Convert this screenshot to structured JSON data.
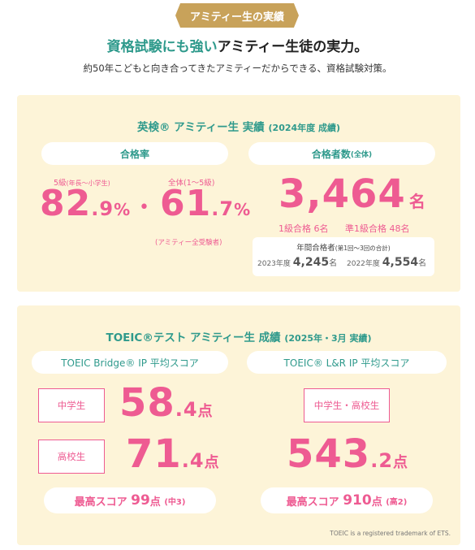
{
  "ribbon": "アミティー生の実績",
  "headline": {
    "teal": "資格試験にも強い",
    "rest": "アミティー生徒の実力。"
  },
  "subline": "約50年こどもと向き合ってきたアミティーだからできる、資格試験対策。",
  "eiken": {
    "title": "英検® アミティー生 実績",
    "title_note": "(2024年度 成績)",
    "pass_rate": {
      "label": "合格率",
      "kids_label": "5級",
      "kids_note": "(年長〜小学生)",
      "kids_int": "82",
      "kids_dec": ".9",
      "kids_unit": "%",
      "dot": "•",
      "all_label": "全体",
      "all_note": "(1〜5級)",
      "all_int": "61",
      "all_dec": ".7",
      "all_unit": "%",
      "all_sub": "(アミティー全受験者)"
    },
    "passers": {
      "label": "合格者数",
      "label_note": "(全体)",
      "count": "3,464",
      "unit": "名",
      "grade1": "1級合格 6名",
      "pre1": "準1級合格 48名",
      "annual_label": "年間合格者",
      "annual_note": "(第1回〜3回の合計)",
      "y2023_label": "2023年度",
      "y2023_value": "4,245",
      "y2022_label": "2022年度",
      "y2022_value": "4,554",
      "unit_small": "名"
    }
  },
  "toeic": {
    "title": "TOEIC®テスト アミティー生 成績",
    "title_note": "(2025年・3月 実績)",
    "bridge": {
      "label": "TOEIC Bridge® IP 平均スコア",
      "junior_label": "中学生",
      "junior_int": "58",
      "junior_dec": ".4",
      "senior_label": "高校生",
      "senior_int": "71",
      "senior_dec": ".4",
      "unit": "点",
      "best_label": "最高スコア",
      "best_value": "99",
      "best_unit": "点",
      "best_note": "(中3)"
    },
    "lr": {
      "label": "TOEIC® L&R IP 平均スコア",
      "group_label": "中学生・高校生",
      "avg_int": "543",
      "avg_dec": ".2",
      "unit": "点",
      "best_label": "最高スコア",
      "best_value": "910",
      "best_unit": "点",
      "best_note": "(高2)"
    },
    "trademark": "TOEIC is a registered trademark of ETS."
  }
}
